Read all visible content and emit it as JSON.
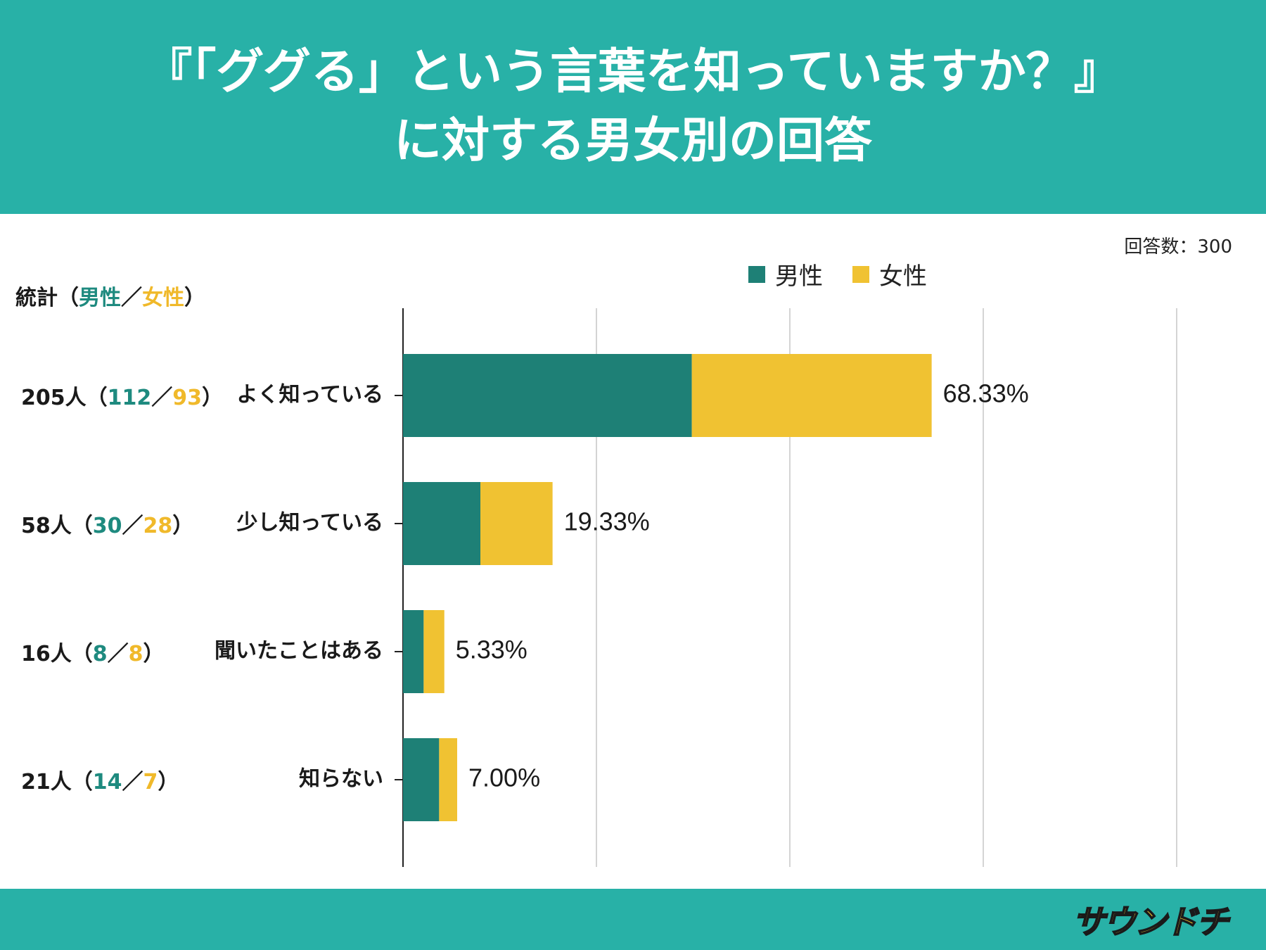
{
  "header": {
    "title_line1": "『「ググる」という言葉を知っていますか？』",
    "title_line2": "に対する男女別の回答"
  },
  "respondents": "回答数：300",
  "stats_heading": {
    "prefix": "統計（",
    "male": "男性",
    "sep": "／",
    "female": "女性",
    "suffix": "）"
  },
  "logo": {
    "text": "サウンドチ"
  },
  "colors": {
    "teal": "#28b1a7",
    "male": "#1e8076",
    "female": "#f0c232",
    "axis": "#222222",
    "grid": "#d4d4d4"
  },
  "chart_data": {
    "type": "bar",
    "orientation": "horizontal",
    "stacked": true,
    "title": "『「ググる」という言葉を知っていますか？』に対する男女別の回答",
    "categories": [
      "よく知っている",
      "少し知っている",
      "聞いたことはある",
      "知らない"
    ],
    "series": [
      {
        "name": "男性",
        "values": [
          37.33,
          10.0,
          2.67,
          4.67
        ]
      },
      {
        "name": "女性",
        "values": [
          31.0,
          9.33,
          2.67,
          2.33
        ]
      }
    ],
    "totals_labels": [
      "68.33%",
      "19.33%",
      "5.33%",
      "7.00%"
    ],
    "stats": [
      {
        "total": "205人",
        "male": "112",
        "female": "93"
      },
      {
        "total": "58人",
        "male": "30",
        "female": "28"
      },
      {
        "total": "16人",
        "male": "8",
        "female": "8"
      },
      {
        "total": "21人",
        "male": "14",
        "female": "7"
      }
    ],
    "xlim": [
      0,
      100
    ],
    "grid": true,
    "legend": "top-center"
  }
}
